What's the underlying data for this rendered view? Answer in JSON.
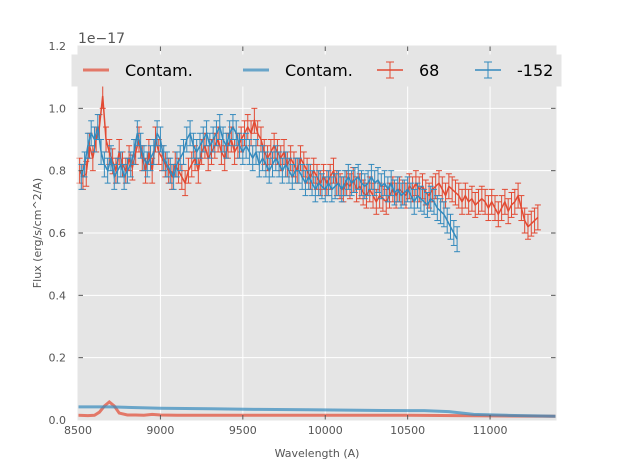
{
  "chart_data": {
    "type": "line",
    "title": "",
    "xlabel": "Wavelength (A)",
    "ylabel": "Flux (erg/s/cm^2/A)",
    "y_offset_label": "1e−17",
    "xlim": [
      8500,
      11400
    ],
    "ylim": [
      0.0,
      1.2
    ],
    "x_ticks": [
      8500,
      9000,
      9500,
      10000,
      10500,
      11000
    ],
    "x_tick_labels": [
      "8500",
      "9000",
      "9500",
      "10000",
      "10500",
      "11000"
    ],
    "y_ticks": [
      0.0,
      0.2,
      0.4,
      0.6,
      0.8,
      1.0,
      1.2
    ],
    "y_tick_labels": [
      "0.0",
      "0.2",
      "0.4",
      "0.6",
      "0.8",
      "1.0",
      "1.2"
    ],
    "grid": true,
    "legend_position": "top",
    "legend": [
      "Contam.",
      "Contam.",
      "68",
      "-152"
    ],
    "colors": {
      "red": "#E24A33",
      "blue": "#348ABD",
      "background": "#E5E5E5",
      "grid": "#ffffff"
    },
    "series": [
      {
        "name": "Contam.",
        "kind": "line",
        "color": "#E24A33",
        "x": [
          8500,
          8560,
          8600,
          8630,
          8660,
          8690,
          8720,
          8750,
          8800,
          8850,
          8900,
          8950,
          9000,
          9100,
          9200,
          9500,
          9800,
          10000,
          10500,
          11000,
          11400
        ],
        "y": [
          0.015,
          0.014,
          0.015,
          0.025,
          0.045,
          0.058,
          0.045,
          0.022,
          0.016,
          0.016,
          0.015,
          0.018,
          0.016,
          0.015,
          0.015,
          0.015,
          0.015,
          0.015,
          0.015,
          0.013,
          0.012
        ]
      },
      {
        "name": "Contam.",
        "kind": "line",
        "color": "#348ABD",
        "x": [
          8500,
          8700,
          9000,
          9300,
          9600,
          9900,
          10200,
          10500,
          10600,
          10750,
          10900,
          11100,
          11400
        ],
        "y": [
          0.042,
          0.042,
          0.038,
          0.036,
          0.034,
          0.033,
          0.031,
          0.03,
          0.03,
          0.027,
          0.018,
          0.015,
          0.012
        ]
      },
      {
        "name": "68",
        "kind": "errorbar",
        "color": "#E24A33",
        "x_start": 8510,
        "x_step": 20,
        "y": [
          0.8,
          0.78,
          0.79,
          0.88,
          0.84,
          0.9,
          0.94,
          1.04,
          0.9,
          0.86,
          0.83,
          0.8,
          0.86,
          0.82,
          0.8,
          0.84,
          0.81,
          0.86,
          0.9,
          0.84,
          0.8,
          0.86,
          0.8,
          0.9,
          0.86,
          0.84,
          0.82,
          0.8,
          0.78,
          0.82,
          0.8,
          0.78,
          0.76,
          0.8,
          0.82,
          0.84,
          0.8,
          0.86,
          0.88,
          0.84,
          0.86,
          0.88,
          0.9,
          0.86,
          0.84,
          0.88,
          0.9,
          0.86,
          0.88,
          0.9,
          0.92,
          0.94,
          0.92,
          0.96,
          0.92,
          0.9,
          0.86,
          0.84,
          0.86,
          0.88,
          0.86,
          0.84,
          0.86,
          0.82,
          0.84,
          0.82,
          0.8,
          0.84,
          0.82,
          0.8,
          0.78,
          0.8,
          0.78,
          0.76,
          0.78,
          0.76,
          0.78,
          0.8,
          0.76,
          0.75,
          0.74,
          0.76,
          0.75,
          0.77,
          0.74,
          0.75,
          0.73,
          0.72,
          0.74,
          0.72,
          0.7,
          0.72,
          0.71,
          0.7,
          0.72,
          0.74,
          0.72,
          0.74,
          0.73,
          0.72,
          0.75,
          0.74,
          0.76,
          0.74,
          0.75,
          0.73,
          0.72,
          0.74,
          0.75,
          0.76,
          0.74,
          0.72,
          0.75,
          0.74,
          0.73,
          0.72,
          0.7,
          0.72,
          0.7,
          0.71,
          0.69,
          0.7,
          0.71,
          0.7,
          0.68,
          0.7,
          0.68,
          0.66,
          0.68,
          0.7,
          0.67,
          0.69,
          0.7,
          0.72,
          0.68,
          0.64,
          0.62,
          0.63,
          0.64,
          0.65
        ],
        "err": 0.04
      },
      {
        "name": "-152",
        "kind": "errorbar",
        "color": "#348ABD",
        "x_start": 8520,
        "x_step": 20,
        "y": [
          0.78,
          0.82,
          0.88,
          0.92,
          0.9,
          0.94,
          0.86,
          0.82,
          0.8,
          0.84,
          0.78,
          0.8,
          0.82,
          0.78,
          0.8,
          0.82,
          0.86,
          0.92,
          0.88,
          0.84,
          0.82,
          0.84,
          0.86,
          0.92,
          0.9,
          0.84,
          0.82,
          0.8,
          0.78,
          0.82,
          0.84,
          0.86,
          0.9,
          0.92,
          0.88,
          0.86,
          0.88,
          0.9,
          0.92,
          0.88,
          0.9,
          0.92,
          0.94,
          0.9,
          0.88,
          0.92,
          0.94,
          0.92,
          0.88,
          0.86,
          0.88,
          0.86,
          0.84,
          0.86,
          0.82,
          0.84,
          0.82,
          0.8,
          0.82,
          0.84,
          0.82,
          0.8,
          0.82,
          0.8,
          0.78,
          0.8,
          0.8,
          0.78,
          0.76,
          0.78,
          0.76,
          0.74,
          0.76,
          0.75,
          0.74,
          0.76,
          0.74,
          0.75,
          0.76,
          0.74,
          0.76,
          0.78,
          0.76,
          0.77,
          0.78,
          0.76,
          0.75,
          0.76,
          0.78,
          0.76,
          0.77,
          0.75,
          0.76,
          0.74,
          0.76,
          0.73,
          0.74,
          0.72,
          0.73,
          0.74,
          0.72,
          0.7,
          0.72,
          0.71,
          0.7,
          0.69,
          0.71,
          0.7,
          0.68,
          0.67,
          0.66,
          0.64,
          0.62,
          0.6,
          0.58
        ],
        "err": 0.04
      }
    ]
  }
}
